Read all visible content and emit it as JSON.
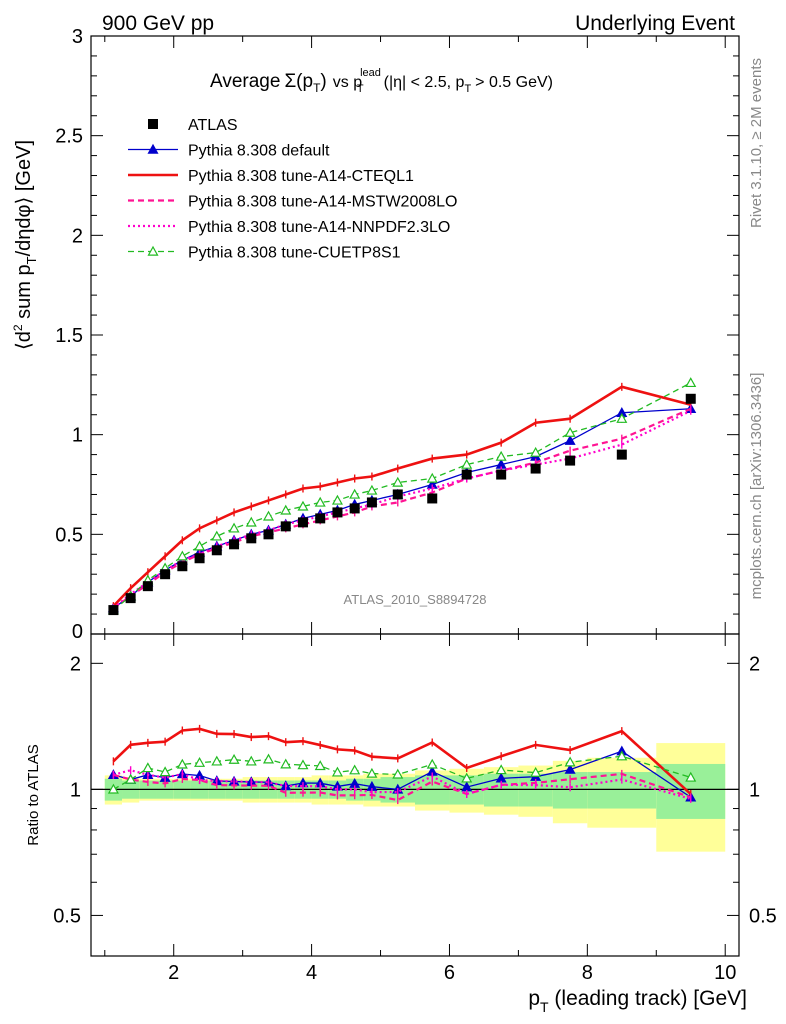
{
  "header": {
    "left": "900 GeV pp",
    "right": "Underlying Event"
  },
  "side_labels": {
    "rivet": "Rivet 3.1.10, ≥ 2M events",
    "mcplots": "mcplots.cern.ch [arXiv:1306.3436]"
  },
  "watermark": "ATLAS_2010_S8894728",
  "colors": {
    "atlas": "#000000",
    "default": "#0000cc",
    "cteql1": "#ee1111",
    "mstw": "#ff1493",
    "nnpdf": "#ff00cc",
    "cuetp8s1": "#22bb22",
    "band_inner": "#99f099",
    "band_outer": "#ffff99"
  },
  "chart_data": [
    {
      "type": "line",
      "panel": "main",
      "title_parts": {
        "average": "Average",
        "sigma": "Σ(p",
        "sigma_sub": "T",
        "sigma_close": ")",
        "vs": "vs p",
        "vs_sup": "lead",
        "vs_sub": "T",
        "cut": "(|η| < 2.5, p",
        "cut_sub": "T",
        "cut_end": "> 0.5 GeV)"
      },
      "ylabel_parts": {
        "open": "⟨d",
        "sup2": "2",
        "mid": " sum p",
        "sub": "T",
        "tail": "/dηdφ⟩ [GeV]"
      },
      "xlabel_parts": {
        "main": "p",
        "sub": "T",
        "tail": " (leading track) [GeV]"
      },
      "xlim": [
        0.8,
        10.2
      ],
      "ylim": [
        0,
        3
      ],
      "yticks": [
        "0.5",
        "1",
        "1.5",
        "2",
        "2.5",
        "3"
      ],
      "ytick_zero": "0",
      "xticks": [
        "2",
        "4",
        "6",
        "8",
        "10"
      ],
      "legend_position": "top-left",
      "x": [
        1.125,
        1.375,
        1.625,
        1.875,
        2.125,
        2.375,
        2.625,
        2.875,
        3.125,
        3.375,
        3.625,
        3.875,
        4.125,
        4.375,
        4.625,
        4.875,
        5.25,
        5.75,
        6.25,
        6.75,
        7.25,
        7.75,
        8.5,
        9.5
      ],
      "atlas": {
        "name": "ATLAS",
        "values": [
          0.12,
          0.18,
          0.24,
          0.3,
          0.34,
          0.38,
          0.42,
          0.45,
          0.48,
          0.5,
          0.54,
          0.56,
          0.58,
          0.61,
          0.63,
          0.66,
          0.7,
          0.68,
          0.8,
          0.8,
          0.83,
          0.87,
          0.9,
          1.18
        ]
      },
      "series": [
        {
          "key": "default",
          "name": "Pythia 8.308 default",
          "style": "solid-thin",
          "marker": "triangle-filled",
          "values": [
            0.13,
            0.19,
            0.26,
            0.32,
            0.37,
            0.41,
            0.44,
            0.47,
            0.5,
            0.52,
            0.55,
            0.58,
            0.6,
            0.62,
            0.65,
            0.67,
            0.7,
            0.75,
            0.81,
            0.85,
            0.89,
            0.97,
            1.11,
            1.13
          ]
        },
        {
          "key": "cteql1",
          "name": "Pythia 8.308 tune-A14-CTEQL1",
          "style": "solid-thick",
          "marker": "none",
          "values": [
            0.14,
            0.23,
            0.31,
            0.39,
            0.47,
            0.53,
            0.57,
            0.61,
            0.64,
            0.67,
            0.7,
            0.73,
            0.74,
            0.76,
            0.78,
            0.79,
            0.83,
            0.88,
            0.9,
            0.96,
            1.06,
            1.08,
            1.24,
            1.15
          ]
        },
        {
          "key": "mstw",
          "name": "Pythia 8.308 tune-A14-MSTW2008LO",
          "style": "dashed",
          "marker": "none",
          "values": [
            0.13,
            0.19,
            0.25,
            0.31,
            0.36,
            0.4,
            0.43,
            0.46,
            0.49,
            0.51,
            0.53,
            0.55,
            0.57,
            0.59,
            0.61,
            0.64,
            0.66,
            0.71,
            0.78,
            0.82,
            0.86,
            0.92,
            0.98,
            1.13
          ]
        },
        {
          "key": "nnpdf",
          "name": "Pythia 8.308 tune-A14-NNPDF2.3LO",
          "style": "dotted",
          "marker": "none",
          "values": [
            0.13,
            0.2,
            0.26,
            0.32,
            0.37,
            0.4,
            0.44,
            0.47,
            0.5,
            0.52,
            0.55,
            0.57,
            0.59,
            0.61,
            0.63,
            0.65,
            0.69,
            0.73,
            0.78,
            0.82,
            0.85,
            0.88,
            0.95,
            1.12
          ]
        },
        {
          "key": "cuetp8s1",
          "name": "Pythia 8.308 tune-CUETP8S1",
          "style": "dashed-thin",
          "marker": "triangle-open",
          "values": [
            0.12,
            0.19,
            0.27,
            0.33,
            0.39,
            0.44,
            0.49,
            0.53,
            0.56,
            0.59,
            0.62,
            0.64,
            0.66,
            0.67,
            0.7,
            0.72,
            0.76,
            0.78,
            0.85,
            0.89,
            0.91,
            1.01,
            1.08,
            1.26
          ]
        }
      ]
    },
    {
      "type": "line",
      "panel": "ratio",
      "ylabel": "Ratio to ATLAS",
      "ylim": [
        0.4,
        2.35
      ],
      "yticks": [
        "0.5",
        "1",
        "2"
      ],
      "xticks": [
        "2",
        "4",
        "6",
        "8",
        "10"
      ],
      "bin_edges": [
        1.0,
        1.25,
        1.5,
        1.75,
        2.0,
        2.25,
        2.5,
        2.75,
        3.0,
        3.25,
        3.5,
        3.75,
        4.0,
        4.25,
        4.5,
        4.75,
        5.0,
        5.5,
        6.0,
        6.5,
        7.0,
        7.5,
        8.0,
        9.0,
        10.0
      ],
      "band_inner": [
        0.06,
        0.05,
        0.05,
        0.05,
        0.05,
        0.05,
        0.05,
        0.05,
        0.05,
        0.05,
        0.05,
        0.05,
        0.05,
        0.05,
        0.06,
        0.06,
        0.07,
        0.08,
        0.08,
        0.09,
        0.09,
        0.1,
        0.1,
        0.15
      ],
      "band_outer": [
        0.08,
        0.07,
        0.06,
        0.06,
        0.06,
        0.06,
        0.06,
        0.06,
        0.07,
        0.07,
        0.07,
        0.07,
        0.08,
        0.08,
        0.08,
        0.09,
        0.09,
        0.11,
        0.12,
        0.13,
        0.14,
        0.17,
        0.19,
        0.29
      ]
    }
  ]
}
